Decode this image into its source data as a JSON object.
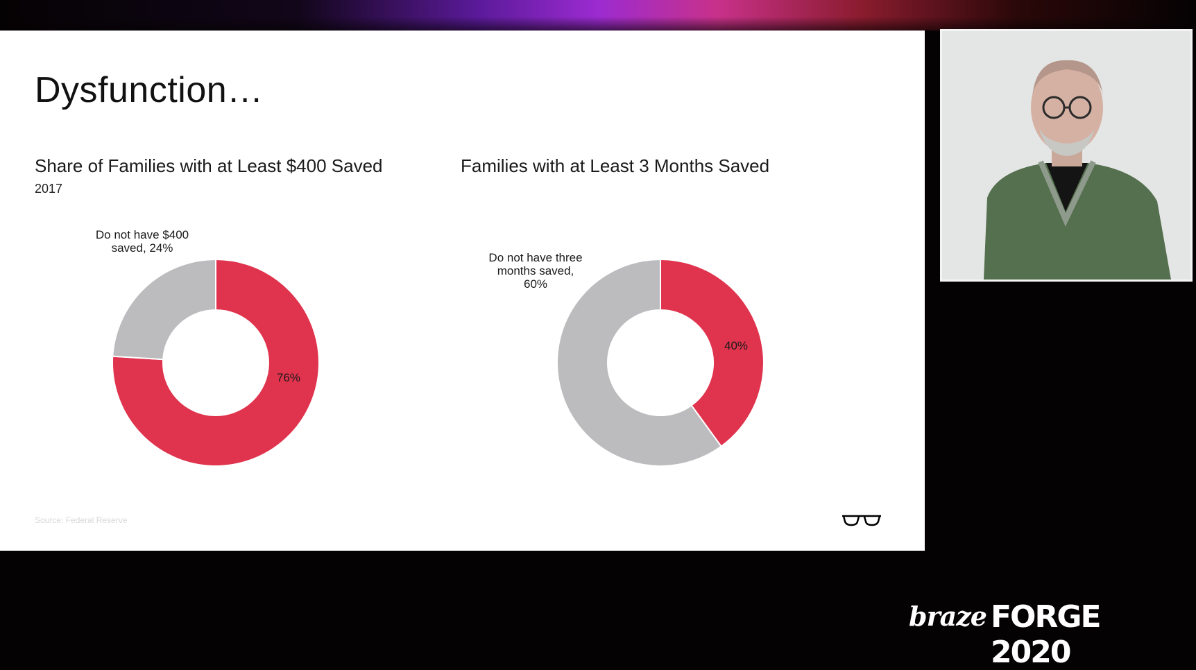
{
  "slide": {
    "title": "Dysfunction…",
    "source": "Source: Federal Reserve"
  },
  "colors": {
    "primary": "#e0334d",
    "secondary": "#bcbcbf"
  },
  "chart_data": [
    {
      "type": "pie",
      "title": "Share of Families with at Least $400 Saved",
      "subtitle": "2017",
      "slices": [
        {
          "label": "",
          "value": 76,
          "data_label": "76%",
          "color": "#e0334d"
        },
        {
          "label": "Do not have $400 saved, 24%",
          "label_lines": [
            "Do not have $400",
            "saved, 24%"
          ],
          "value": 24,
          "color": "#bcbcbf"
        }
      ]
    },
    {
      "type": "pie",
      "title": "Families with at Least 3 Months Saved",
      "slices": [
        {
          "label": "",
          "value": 40,
          "data_label": "40%",
          "color": "#e0334d"
        },
        {
          "label": "Do not have three months saved, 60%",
          "label_lines": [
            "Do not have three",
            "months saved,",
            "60%"
          ],
          "value": 60,
          "color": "#bcbcbf"
        }
      ]
    }
  ],
  "branding": {
    "braze": "braze",
    "event": "FORGE 2020"
  },
  "icons": {
    "logo": "glasses-icon",
    "presenter": "webcam-video"
  }
}
